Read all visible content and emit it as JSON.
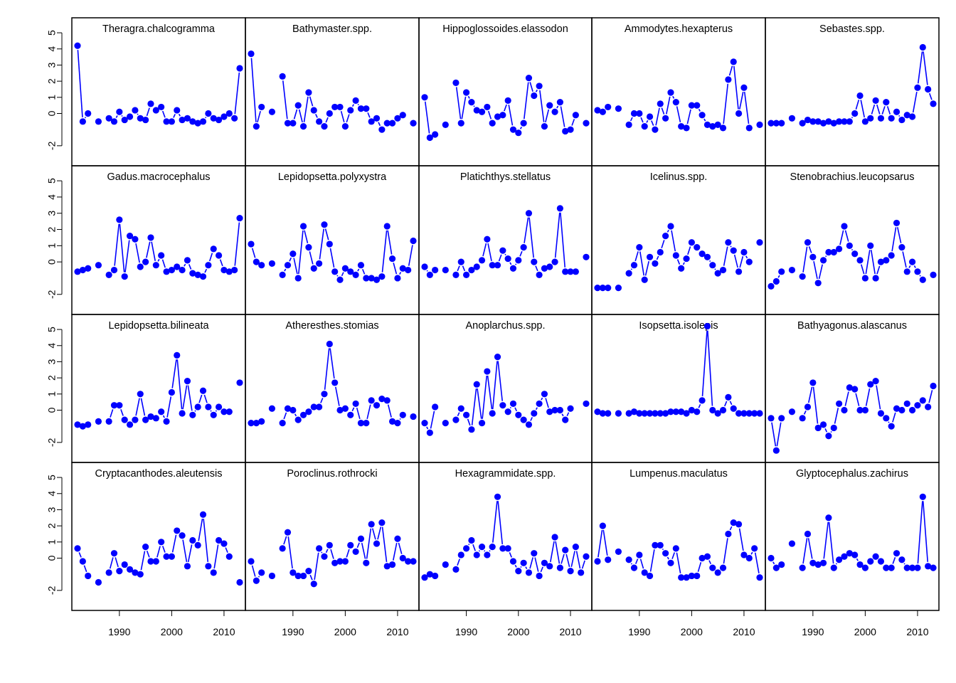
{
  "chart_data": {
    "type": "line",
    "layout": "small-multiples grid, 4 rows x 5 columns, shared axes",
    "color": "#0000ff",
    "x": [
      1982,
      1983,
      1984,
      1985,
      1986,
      1987,
      1988,
      1989,
      1990,
      1991,
      1992,
      1993,
      1994,
      1995,
      1996,
      1997,
      1998,
      1999,
      2000,
      2001,
      2002,
      2003,
      2004,
      2005,
      2006,
      2007,
      2008,
      2009,
      2010,
      2011,
      2012,
      2013
    ],
    "x_ticks": [
      1990,
      2000,
      2010
    ],
    "y_ticks": [
      -2,
      0,
      1,
      2,
      3,
      4,
      5
    ],
    "xlim": [
      1982,
      2013
    ],
    "ylim": [
      -2.8,
      5.4
    ],
    "grid": false,
    "series": [
      {
        "name": "Theragra.chalcogramma",
        "values": [
          4.2,
          -0.5,
          0.0,
          null,
          -0.5,
          null,
          -0.3,
          -0.5,
          0.1,
          -0.4,
          -0.2,
          0.2,
          -0.3,
          -0.4,
          0.6,
          0.2,
          0.4,
          -0.5,
          -0.5,
          0.2,
          -0.4,
          -0.3,
          -0.5,
          -0.6,
          -0.5,
          0.0,
          -0.3,
          -0.4,
          -0.2,
          0.0,
          -0.3,
          2.8
        ]
      },
      {
        "name": "Bathymaster.spp.",
        "values": [
          3.7,
          -0.8,
          0.4,
          null,
          0.1,
          null,
          2.3,
          -0.6,
          -0.6,
          0.5,
          -0.8,
          1.3,
          0.2,
          -0.5,
          -0.8,
          0.0,
          0.4,
          0.4,
          -0.8,
          0.2,
          0.8,
          0.3,
          0.3,
          -0.5,
          -0.3,
          -1.0,
          -0.6,
          -0.6,
          -0.3,
          -0.1,
          null,
          -0.6
        ]
      },
      {
        "name": "Hippoglossoides.elassodon",
        "values": [
          1.0,
          -1.5,
          -1.3,
          null,
          -0.7,
          null,
          1.9,
          -0.6,
          1.3,
          0.7,
          0.2,
          0.1,
          0.4,
          -0.6,
          -0.2,
          -0.1,
          0.8,
          -1.0,
          -1.2,
          -0.6,
          2.2,
          1.1,
          1.7,
          -0.8,
          0.5,
          0.1,
          0.7,
          -1.1,
          -1.0,
          -0.1,
          null,
          -0.6
        ]
      },
      {
        "name": "Ammodytes.hexapterus",
        "values": [
          0.2,
          0.1,
          0.4,
          null,
          0.3,
          null,
          -0.7,
          0.0,
          0.0,
          -0.8,
          -0.2,
          -1.0,
          0.6,
          -0.3,
          1.3,
          0.7,
          -0.8,
          -0.9,
          0.5,
          0.5,
          -0.1,
          -0.7,
          -0.8,
          -0.7,
          -0.9,
          2.1,
          3.2,
          0.0,
          1.6,
          -0.9,
          null,
          -0.7
        ]
      },
      {
        "name": "Sebastes.spp.",
        "values": [
          -0.6,
          -0.6,
          -0.6,
          null,
          -0.3,
          null,
          -0.6,
          -0.4,
          -0.5,
          -0.5,
          -0.6,
          -0.5,
          -0.6,
          -0.5,
          -0.5,
          -0.5,
          0.0,
          1.1,
          -0.5,
          -0.3,
          0.8,
          -0.3,
          0.7,
          -0.3,
          0.1,
          -0.4,
          -0.1,
          -0.2,
          1.6,
          4.1,
          1.5,
          0.6
        ]
      },
      {
        "name": "Gadus.macrocephalus",
        "values": [
          -0.6,
          -0.5,
          -0.4,
          null,
          -0.2,
          null,
          -0.8,
          -0.5,
          2.6,
          -0.9,
          1.6,
          1.4,
          -0.3,
          0.0,
          1.5,
          -0.2,
          0.4,
          -0.6,
          -0.5,
          -0.3,
          -0.5,
          0.1,
          -0.7,
          -0.8,
          -0.9,
          -0.2,
          0.8,
          0.4,
          -0.5,
          -0.6,
          -0.5,
          2.7
        ]
      },
      {
        "name": "Lepidopsetta.polyxystra",
        "values": [
          1.1,
          0.0,
          -0.2,
          null,
          -0.1,
          null,
          -0.8,
          -0.2,
          0.5,
          -1.0,
          2.2,
          0.9,
          -0.4,
          -0.1,
          2.3,
          1.1,
          -0.6,
          -1.1,
          -0.4,
          -0.6,
          -0.8,
          -0.2,
          -1.0,
          -1.0,
          -1.1,
          -0.9,
          2.2,
          0.2,
          -1.0,
          -0.4,
          -0.5,
          1.3
        ]
      },
      {
        "name": "Platichthys.stellatus",
        "values": [
          -0.3,
          -0.8,
          -0.5,
          null,
          -0.5,
          null,
          -0.8,
          0.0,
          -0.8,
          -0.5,
          -0.3,
          0.1,
          1.4,
          -0.2,
          -0.2,
          0.7,
          0.2,
          -0.4,
          0.1,
          0.9,
          3.0,
          0.0,
          -0.8,
          -0.4,
          -0.3,
          0.0,
          3.3,
          -0.6,
          -0.6,
          -0.6,
          null,
          0.3
        ]
      },
      {
        "name": "Icelinus.spp.",
        "values": [
          -1.6,
          -1.6,
          -1.6,
          null,
          -1.6,
          null,
          -0.7,
          -0.2,
          0.9,
          -1.1,
          0.3,
          -0.1,
          0.6,
          1.6,
          2.2,
          0.4,
          -0.4,
          0.2,
          1.2,
          0.9,
          0.5,
          0.3,
          -0.2,
          -0.7,
          -0.5,
          1.2,
          0.7,
          -0.6,
          0.6,
          0.0,
          null,
          1.2
        ]
      },
      {
        "name": "Stenobrachius.leucopsarus",
        "values": [
          -1.5,
          -1.2,
          -0.6,
          null,
          -0.5,
          null,
          -0.9,
          1.2,
          0.3,
          -1.3,
          0.1,
          0.6,
          0.6,
          0.8,
          2.2,
          1.0,
          0.5,
          0.1,
          -1.0,
          1.0,
          -1.0,
          0.0,
          0.1,
          0.4,
          2.4,
          0.9,
          -0.6,
          0.0,
          -0.6,
          -1.1,
          null,
          -0.8
        ]
      },
      {
        "name": "Lepidopsetta.bilineata",
        "values": [
          -0.9,
          -1.0,
          -0.9,
          null,
          -0.7,
          null,
          -0.7,
          0.3,
          0.3,
          -0.6,
          -0.9,
          -0.6,
          1.0,
          -0.6,
          -0.4,
          -0.5,
          -0.1,
          -0.7,
          1.1,
          3.4,
          -0.2,
          1.8,
          -0.3,
          0.2,
          1.2,
          0.2,
          -0.3,
          0.2,
          -0.1,
          -0.1,
          null,
          1.7
        ]
      },
      {
        "name": "Atheresthes.stomias",
        "values": [
          -0.8,
          -0.8,
          -0.7,
          null,
          0.1,
          null,
          -0.8,
          0.1,
          0.0,
          -0.6,
          -0.3,
          -0.1,
          0.2,
          0.2,
          1.0,
          4.1,
          1.7,
          0.0,
          0.1,
          -0.3,
          0.4,
          -0.8,
          -0.8,
          0.6,
          0.3,
          0.7,
          0.6,
          -0.7,
          -0.8,
          -0.3,
          null,
          -0.4
        ]
      },
      {
        "name": "Anoplarchus.spp.",
        "values": [
          -0.8,
          -1.4,
          0.2,
          null,
          -0.8,
          null,
          -0.6,
          0.1,
          -0.3,
          -1.2,
          1.6,
          -0.8,
          2.4,
          -0.2,
          3.3,
          0.3,
          -0.1,
          0.4,
          -0.3,
          -0.6,
          -0.9,
          -0.2,
          0.4,
          1.0,
          -0.1,
          0.0,
          0.0,
          -0.6,
          0.1,
          null,
          null,
          0.4
        ]
      },
      {
        "name": "Isopsetta.isolepis",
        "values": [
          -0.1,
          -0.2,
          -0.2,
          null,
          -0.2,
          null,
          -0.2,
          -0.1,
          -0.2,
          -0.2,
          -0.2,
          -0.2,
          -0.2,
          -0.2,
          -0.1,
          -0.1,
          -0.1,
          -0.2,
          0.0,
          -0.1,
          0.6,
          5.2,
          0.0,
          -0.2,
          0.0,
          0.8,
          0.1,
          -0.2,
          -0.2,
          -0.2,
          -0.2,
          -0.2
        ]
      },
      {
        "name": "Bathyagonus.alascanus",
        "values": [
          -0.5,
          -2.5,
          -0.5,
          null,
          -0.1,
          null,
          -0.5,
          0.2,
          1.7,
          -1.1,
          -0.9,
          -1.6,
          -1.1,
          0.4,
          0.0,
          1.4,
          1.3,
          0.0,
          0.0,
          1.6,
          1.8,
          -0.2,
          -0.5,
          -1.0,
          0.1,
          0.0,
          0.4,
          0.0,
          0.3,
          0.6,
          0.2,
          1.5
        ]
      },
      {
        "name": "Cryptacanthodes.aleutensis",
        "values": [
          0.6,
          -0.2,
          -1.1,
          null,
          -1.5,
          null,
          -0.9,
          0.3,
          -0.8,
          -0.4,
          -0.7,
          -0.9,
          -1.0,
          0.7,
          -0.2,
          -0.2,
          1.0,
          0.1,
          0.1,
          1.7,
          1.4,
          -0.5,
          1.1,
          0.8,
          2.7,
          -0.5,
          -0.9,
          1.1,
          0.9,
          0.1,
          null,
          -1.5
        ]
      },
      {
        "name": "Poroclinus.rothrocki",
        "values": [
          -0.2,
          -1.4,
          -0.9,
          null,
          -1.1,
          null,
          0.6,
          1.6,
          -0.9,
          -1.1,
          -1.1,
          -0.8,
          -1.6,
          0.6,
          0.1,
          0.8,
          -0.3,
          -0.2,
          -0.2,
          0.8,
          0.4,
          1.2,
          -0.3,
          2.1,
          0.9,
          2.2,
          -0.5,
          -0.4,
          1.2,
          0.0,
          -0.2,
          -0.2
        ]
      },
      {
        "name": "Hexagrammidate.spp.",
        "values": [
          -1.2,
          -1.0,
          -1.1,
          null,
          -0.4,
          null,
          -0.7,
          0.2,
          0.6,
          1.1,
          0.2,
          0.7,
          0.2,
          0.7,
          3.8,
          0.6,
          0.6,
          -0.2,
          -0.8,
          -0.3,
          -0.9,
          0.3,
          -1.1,
          -0.3,
          -0.5,
          1.3,
          -0.6,
          0.5,
          -0.8,
          0.7,
          -0.9,
          0.1
        ]
      },
      {
        "name": "Lumpenus.maculatus",
        "values": [
          -0.2,
          2.0,
          -0.1,
          null,
          0.4,
          null,
          -0.1,
          -0.6,
          0.2,
          -0.9,
          -1.1,
          0.8,
          0.8,
          0.3,
          -0.3,
          0.6,
          -1.2,
          -1.2,
          -1.1,
          -1.1,
          0.0,
          0.1,
          -0.6,
          -0.9,
          -0.6,
          1.5,
          2.2,
          2.1,
          0.2,
          0.0,
          0.6,
          -1.2
        ]
      },
      {
        "name": "Glyptocephalus.zachirus",
        "values": [
          0.0,
          -0.6,
          -0.4,
          null,
          0.9,
          null,
          -0.6,
          1.5,
          -0.3,
          -0.4,
          -0.3,
          2.5,
          -0.6,
          -0.1,
          0.1,
          0.3,
          0.2,
          -0.4,
          -0.6,
          -0.2,
          0.1,
          -0.2,
          -0.6,
          -0.6,
          0.3,
          -0.1,
          -0.6,
          -0.6,
          -0.6,
          3.8,
          -0.5,
          -0.6
        ]
      }
    ]
  }
}
